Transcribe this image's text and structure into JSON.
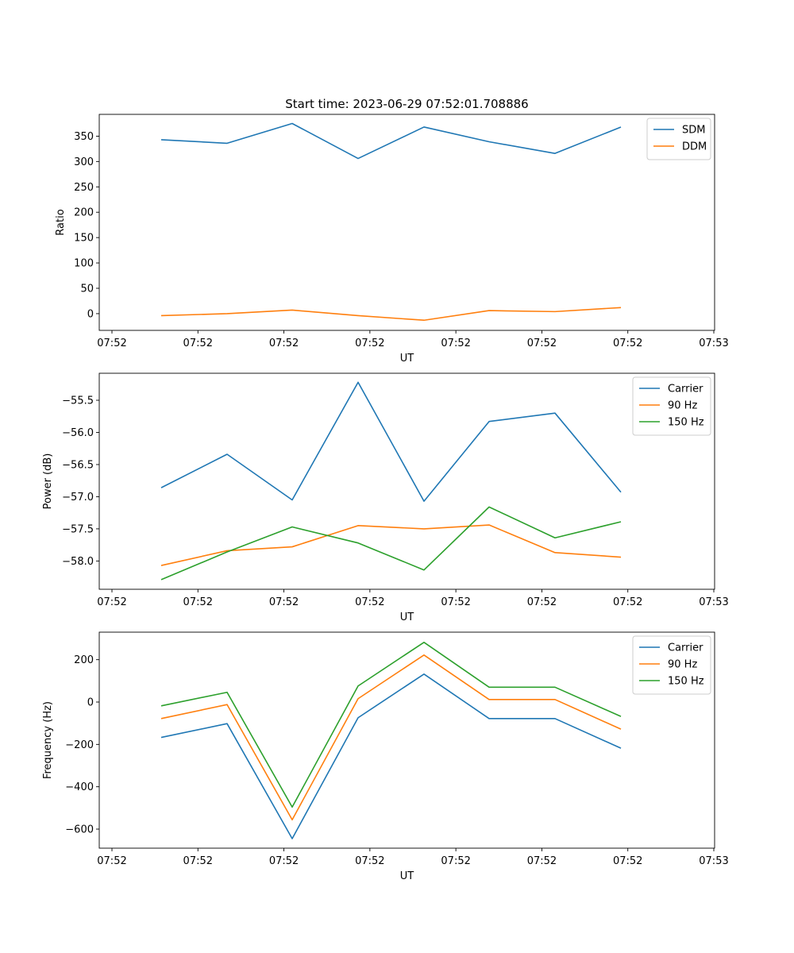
{
  "colors": {
    "blue": "#1f77b4",
    "orange": "#ff7f0e",
    "green": "#2ca02c"
  },
  "chart_data": [
    {
      "type": "line",
      "title": "Start time: 2023-06-29 07:52:01.708886",
      "xlabel": "UT",
      "ylabel": "Ratio",
      "x_tick_labels": [
        "07:52",
        "07:52",
        "07:52",
        "07:52",
        "07:52",
        "07:52",
        "07:52",
        "07:53"
      ],
      "y_ticks": [
        0,
        50,
        100,
        150,
        200,
        250,
        300,
        350
      ],
      "ylim": [
        -33,
        393
      ],
      "legend_position": "top-right",
      "series": [
        {
          "name": "SDM",
          "color": "#1f77b4",
          "values": [
            343,
            336,
            375,
            306,
            368,
            339,
            316,
            368
          ]
        },
        {
          "name": "DDM",
          "color": "#ff7f0e",
          "values": [
            -4,
            0,
            7,
            -4,
            -13,
            6,
            4,
            12
          ]
        }
      ]
    },
    {
      "type": "line",
      "title": "",
      "xlabel": "UT",
      "ylabel": "Power (dB)",
      "x_tick_labels": [
        "07:52",
        "07:52",
        "07:52",
        "07:52",
        "07:52",
        "07:52",
        "07:52",
        "07:53"
      ],
      "y_ticks": [
        -58.0,
        -57.5,
        -57.0,
        -56.5,
        -56.0,
        -55.5
      ],
      "y_tick_labels": [
        "−58.0",
        "−57.5",
        "−57.0",
        "−56.5",
        "−56.0",
        "−55.5"
      ],
      "ylim": [
        -58.44,
        -55.08
      ],
      "legend_position": "top-right",
      "series": [
        {
          "name": "Carrier",
          "color": "#1f77b4",
          "values": [
            -56.86,
            -56.34,
            -57.05,
            -55.22,
            -57.07,
            -55.83,
            -55.7,
            -56.93
          ]
        },
        {
          "name": "90 Hz",
          "color": "#ff7f0e",
          "values": [
            -58.07,
            -57.84,
            -57.78,
            -57.45,
            -57.5,
            -57.44,
            -57.87,
            -57.94
          ]
        },
        {
          "name": "150 Hz",
          "color": "#2ca02c",
          "values": [
            -58.29,
            -57.86,
            -57.47,
            -57.72,
            -58.14,
            -57.16,
            -57.64,
            -57.39
          ]
        }
      ]
    },
    {
      "type": "line",
      "title": "",
      "xlabel": "UT",
      "ylabel": "Frequency (Hz)",
      "x_tick_labels": [
        "07:52",
        "07:52",
        "07:52",
        "07:52",
        "07:52",
        "07:52",
        "07:52",
        "07:53"
      ],
      "y_ticks": [
        -600,
        -400,
        -200,
        0,
        200
      ],
      "y_tick_labels": [
        "−600",
        "−400",
        "−200",
        "0",
        "200"
      ],
      "ylim": [
        -690,
        330
      ],
      "legend_position": "top-right",
      "series": [
        {
          "name": "Carrier",
          "color": "#1f77b4",
          "values": [
            -167,
            -102,
            -645,
            -74,
            132,
            -78,
            -78,
            -218
          ]
        },
        {
          "name": "90 Hz",
          "color": "#ff7f0e",
          "values": [
            -78,
            -12,
            -556,
            16,
            222,
            12,
            12,
            -128
          ]
        },
        {
          "name": "150 Hz",
          "color": "#2ca02c",
          "values": [
            -18,
            46,
            -496,
            76,
            282,
            70,
            70,
            -68
          ]
        }
      ]
    }
  ]
}
